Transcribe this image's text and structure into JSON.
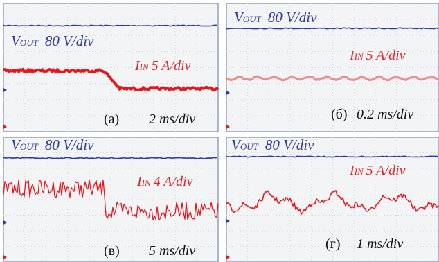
{
  "panels": [
    {
      "label": "(а)",
      "time_scale": "2 ms/div",
      "vout": {
        "symbol": "V",
        "subscript": "OUT",
        "scale": "80 V/div"
      },
      "iin": {
        "symbol": "I",
        "subscript": "IN",
        "scale": "5 A/div"
      }
    },
    {
      "label": "(б)",
      "time_scale": "0.2 ms/div",
      "vout": {
        "symbol": "V",
        "subscript": "OUT",
        "scale": "80 V/div"
      },
      "iin": {
        "symbol": "I",
        "subscript": "IN",
        "scale": "5 A/div"
      }
    },
    {
      "label": "(в)",
      "time_scale": "5 ms/div",
      "vout": {
        "symbol": "V",
        "subscript": "OUT",
        "scale": "80 V/div"
      },
      "iin": {
        "symbol": "I",
        "subscript": "IN",
        "scale": "4 A/div"
      }
    },
    {
      "label": "(г)",
      "time_scale": "1 ms/div",
      "vout": {
        "symbol": "V",
        "subscript": "OUT",
        "scale": "80 V/div"
      },
      "iin": {
        "symbol": "I",
        "subscript": "IN",
        "scale": "5 A/div"
      }
    }
  ]
}
